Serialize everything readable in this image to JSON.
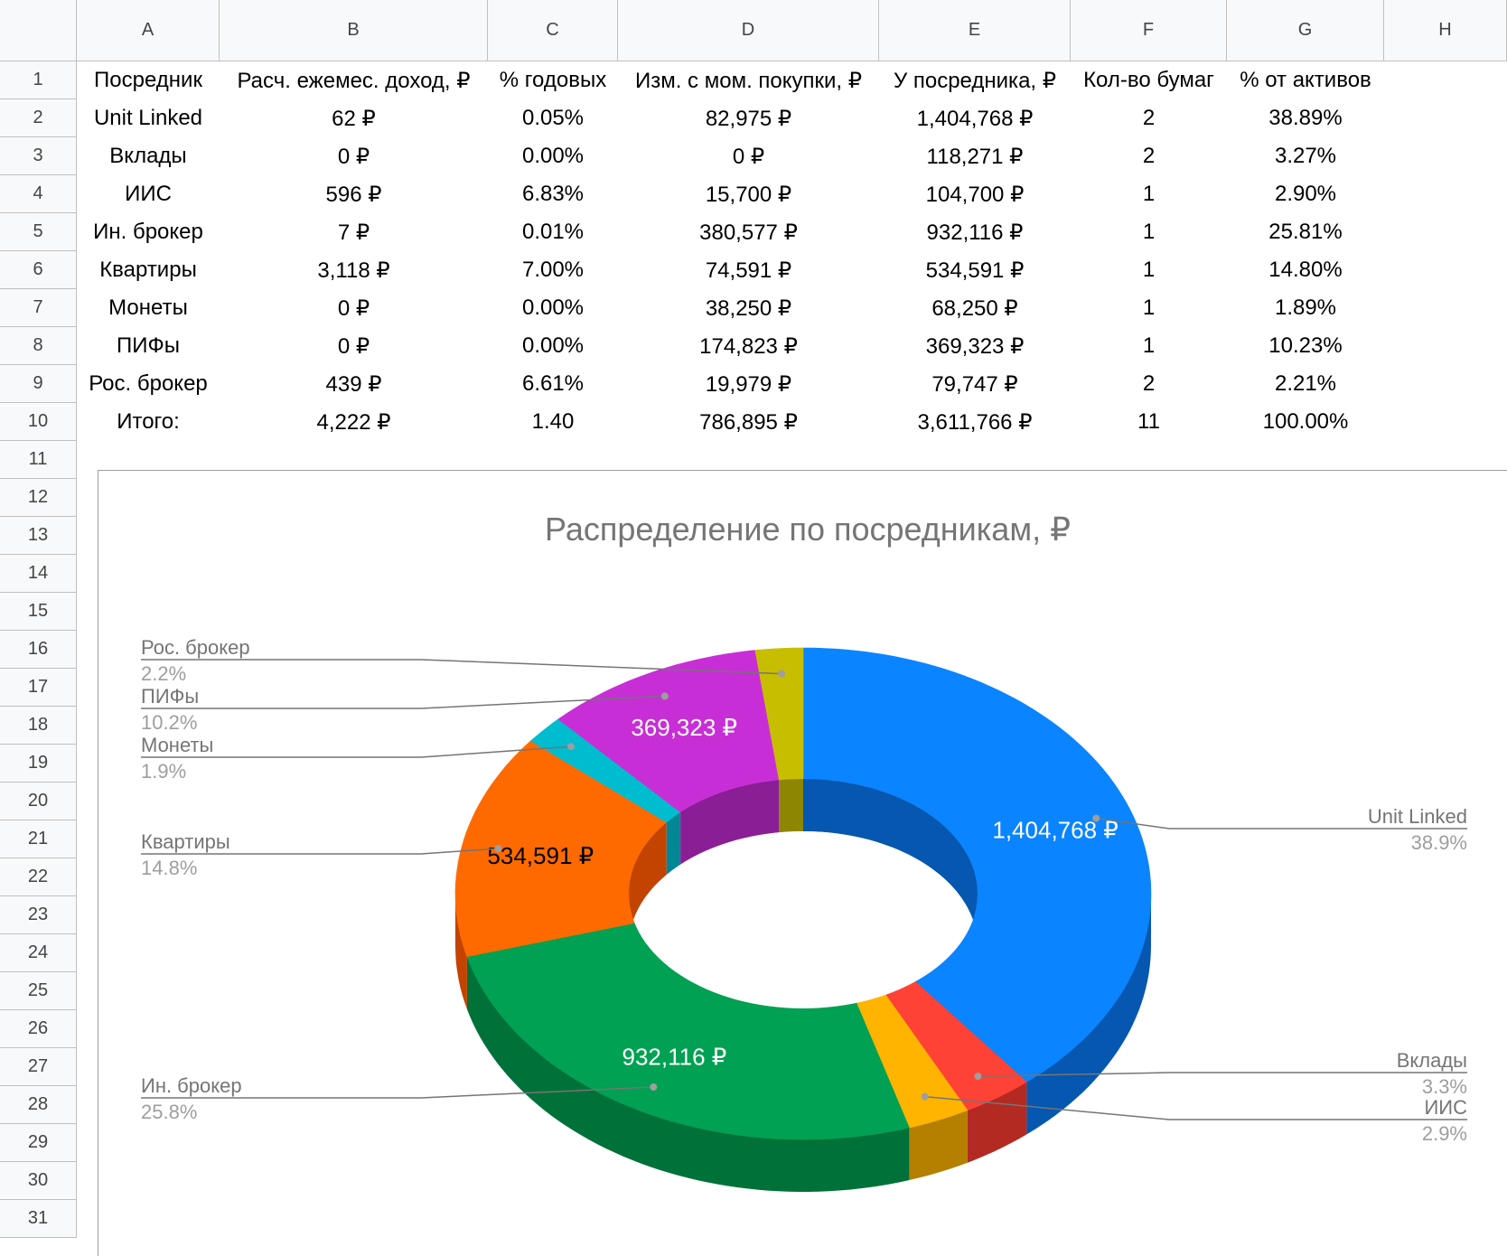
{
  "columns": [
    "A",
    "B",
    "C",
    "D",
    "E",
    "F",
    "G",
    "H"
  ],
  "rows": [
    "1",
    "2",
    "3",
    "4",
    "5",
    "6",
    "7",
    "8",
    "9",
    "10",
    "11",
    "12",
    "13",
    "14",
    "15",
    "16",
    "17",
    "18",
    "19",
    "20",
    "21",
    "22",
    "23",
    "24",
    "25",
    "26",
    "27",
    "28",
    "29",
    "30",
    "31"
  ],
  "table": {
    "headers": [
      "Посредник",
      "Расч. ежемес. доход, ₽",
      "% годовых",
      "Изм. с мом. покупки, ₽",
      "У посредника, ₽",
      "Кол-во бумаг",
      "% от активов"
    ],
    "rows": [
      [
        "Unit Linked",
        "62 ₽",
        "0.05%",
        "82,975 ₽",
        "1,404,768 ₽",
        "2",
        "38.89%"
      ],
      [
        "Вклады",
        "0 ₽",
        "0.00%",
        "0 ₽",
        "118,271 ₽",
        "2",
        "3.27%"
      ],
      [
        "ИИС",
        "596 ₽",
        "6.83%",
        "15,700 ₽",
        "104,700 ₽",
        "1",
        "2.90%"
      ],
      [
        "Ин. брокер",
        "7 ₽",
        "0.01%",
        "380,577 ₽",
        "932,116 ₽",
        "1",
        "25.81%"
      ],
      [
        "Квартиры",
        "3,118 ₽",
        "7.00%",
        "74,591 ₽",
        "534,591 ₽",
        "1",
        "14.80%"
      ],
      [
        "Монеты",
        "0 ₽",
        "0.00%",
        "38,250 ₽",
        "68,250 ₽",
        "1",
        "1.89%"
      ],
      [
        "ПИФы",
        "0 ₽",
        "0.00%",
        "174,823 ₽",
        "369,323 ₽",
        "1",
        "10.23%"
      ],
      [
        "Рос. брокер",
        "439 ₽",
        "6.61%",
        "19,979 ₽",
        "79,747 ₽",
        "2",
        "2.21%"
      ],
      [
        "Итого:",
        "4,222 ₽",
        "1.40",
        "786,895 ₽",
        "3,611,766 ₽",
        "11",
        "100.00%"
      ]
    ]
  },
  "chart_data": {
    "type": "pie",
    "donut": true,
    "three_d": true,
    "title": "Распределение по посредникам, ₽",
    "slices": [
      {
        "name": "Unit Linked",
        "value": 1404768,
        "value_label": "1,404,768 ₽",
        "percent_label": "38.9%",
        "color": "#0a84ff",
        "dark": "#0557b0"
      },
      {
        "name": "Вклады",
        "value": 118271,
        "value_label": "",
        "percent_label": "3.3%",
        "color": "#ff4136",
        "dark": "#b32a23"
      },
      {
        "name": "ИИС",
        "value": 104700,
        "value_label": "",
        "percent_label": "2.9%",
        "color": "#ffb400",
        "dark": "#b57f00"
      },
      {
        "name": "Ин. брокер",
        "value": 932116,
        "value_label": "932,116 ₽",
        "percent_label": "25.8%",
        "color": "#00a152",
        "dark": "#007139"
      },
      {
        "name": "Квартиры",
        "value": 534591,
        "value_label": "534,591 ₽",
        "percent_label": "14.8%",
        "color": "#ff6a00",
        "dark": "#c24400"
      },
      {
        "name": "Монеты",
        "value": 68250,
        "value_label": "",
        "percent_label": "1.9%",
        "color": "#00bccf",
        "dark": "#008796"
      },
      {
        "name": "ПИФы",
        "value": 369323,
        "value_label": "369,323 ₽",
        "percent_label": "10.2%",
        "color": "#c82ed6",
        "dark": "#8a1e95"
      },
      {
        "name": "Рос. брокер",
        "value": 79747,
        "value_label": "",
        "percent_label": "2.2%",
        "color": "#c8be00",
        "dark": "#8d8600"
      }
    ],
    "legend_position": "labeled callouts"
  }
}
